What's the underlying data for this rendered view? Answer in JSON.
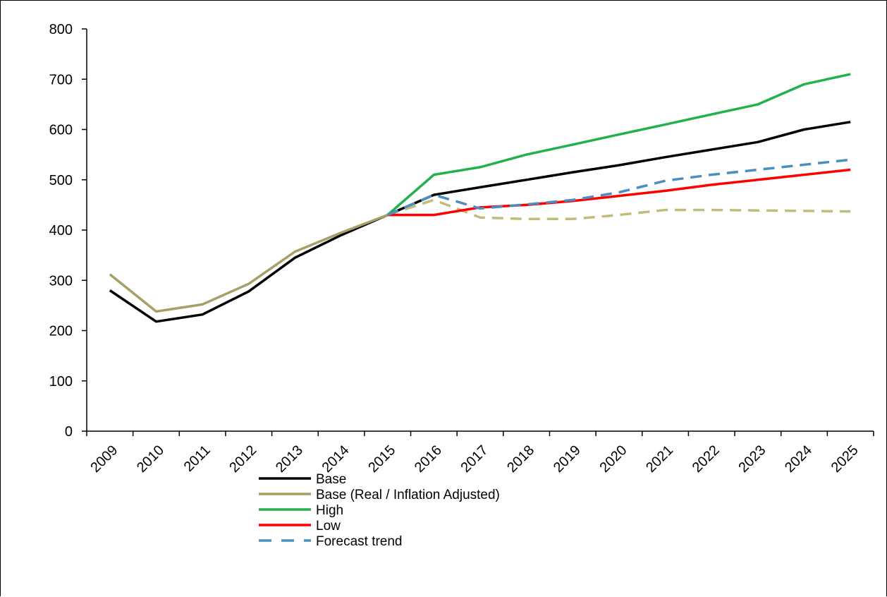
{
  "chart_data": {
    "type": "line",
    "title": "",
    "xlabel": "",
    "ylabel": "",
    "categories": [
      "2009",
      "2010",
      "2011",
      "2012",
      "2013",
      "2014",
      "2015",
      "2016",
      "2017",
      "2018",
      "2019",
      "2020",
      "2021",
      "2022",
      "2023",
      "2024",
      "2025"
    ],
    "ylim": [
      0,
      800
    ],
    "yticks": [
      0,
      100,
      200,
      300,
      400,
      500,
      600,
      700,
      800
    ],
    "ytick_labels": [
      "0",
      "100",
      "200",
      "300",
      "400",
      "500",
      "600",
      "700",
      "800"
    ],
    "grid": false,
    "legend_position": "bottom-left",
    "series": [
      {
        "name": "Base",
        "color": "#000000",
        "dash": "solid",
        "values": [
          280,
          218,
          232,
          278,
          345,
          390,
          430,
          470,
          485,
          500,
          515,
          529,
          545,
          560,
          575,
          600,
          615
        ]
      },
      {
        "name": "Base (Real / Inflation Adjusted)",
        "color": "#a89f68",
        "dash": "solid",
        "values": [
          312,
          238,
          252,
          293,
          357,
          395,
          430,
          null,
          null,
          null,
          null,
          null,
          null,
          null,
          null,
          null,
          null
        ]
      },
      {
        "name": "",
        "color": "#c3bb7a",
        "dash": "dashed",
        "values": [
          null,
          null,
          null,
          null,
          null,
          null,
          430,
          460,
          425,
          422,
          422,
          430,
          440,
          440,
          439,
          438,
          437
        ]
      },
      {
        "name": "High",
        "color": "#22b14c",
        "dash": "solid",
        "values": [
          null,
          null,
          null,
          null,
          null,
          null,
          430,
          510,
          525,
          550,
          570,
          590,
          610,
          630,
          650,
          690,
          710
        ]
      },
      {
        "name": "Low",
        "color": "#ff0000",
        "dash": "solid",
        "values": [
          null,
          null,
          null,
          null,
          null,
          null,
          430,
          430,
          445,
          450,
          458,
          468,
          478,
          490,
          500,
          510,
          520
        ]
      },
      {
        "name": "Forecast trend",
        "color": "#4a8fbf",
        "dash": "dashed",
        "values": [
          null,
          null,
          null,
          null,
          null,
          null,
          430,
          470,
          443,
          451,
          460,
          475,
          498,
          510,
          520,
          530,
          540
        ]
      }
    ],
    "legend": [
      {
        "label": "Base",
        "color": "#000000",
        "dash": "solid"
      },
      {
        "label": "Base (Real / Inflation Adjusted)",
        "color": "#a89f68",
        "dash": "solid"
      },
      {
        "label": "High",
        "color": "#22b14c",
        "dash": "solid"
      },
      {
        "label": "Low",
        "color": "#ff0000",
        "dash": "solid"
      },
      {
        "label": "Forecast trend",
        "color": "#4a8fbf",
        "dash": "dashed"
      }
    ]
  }
}
